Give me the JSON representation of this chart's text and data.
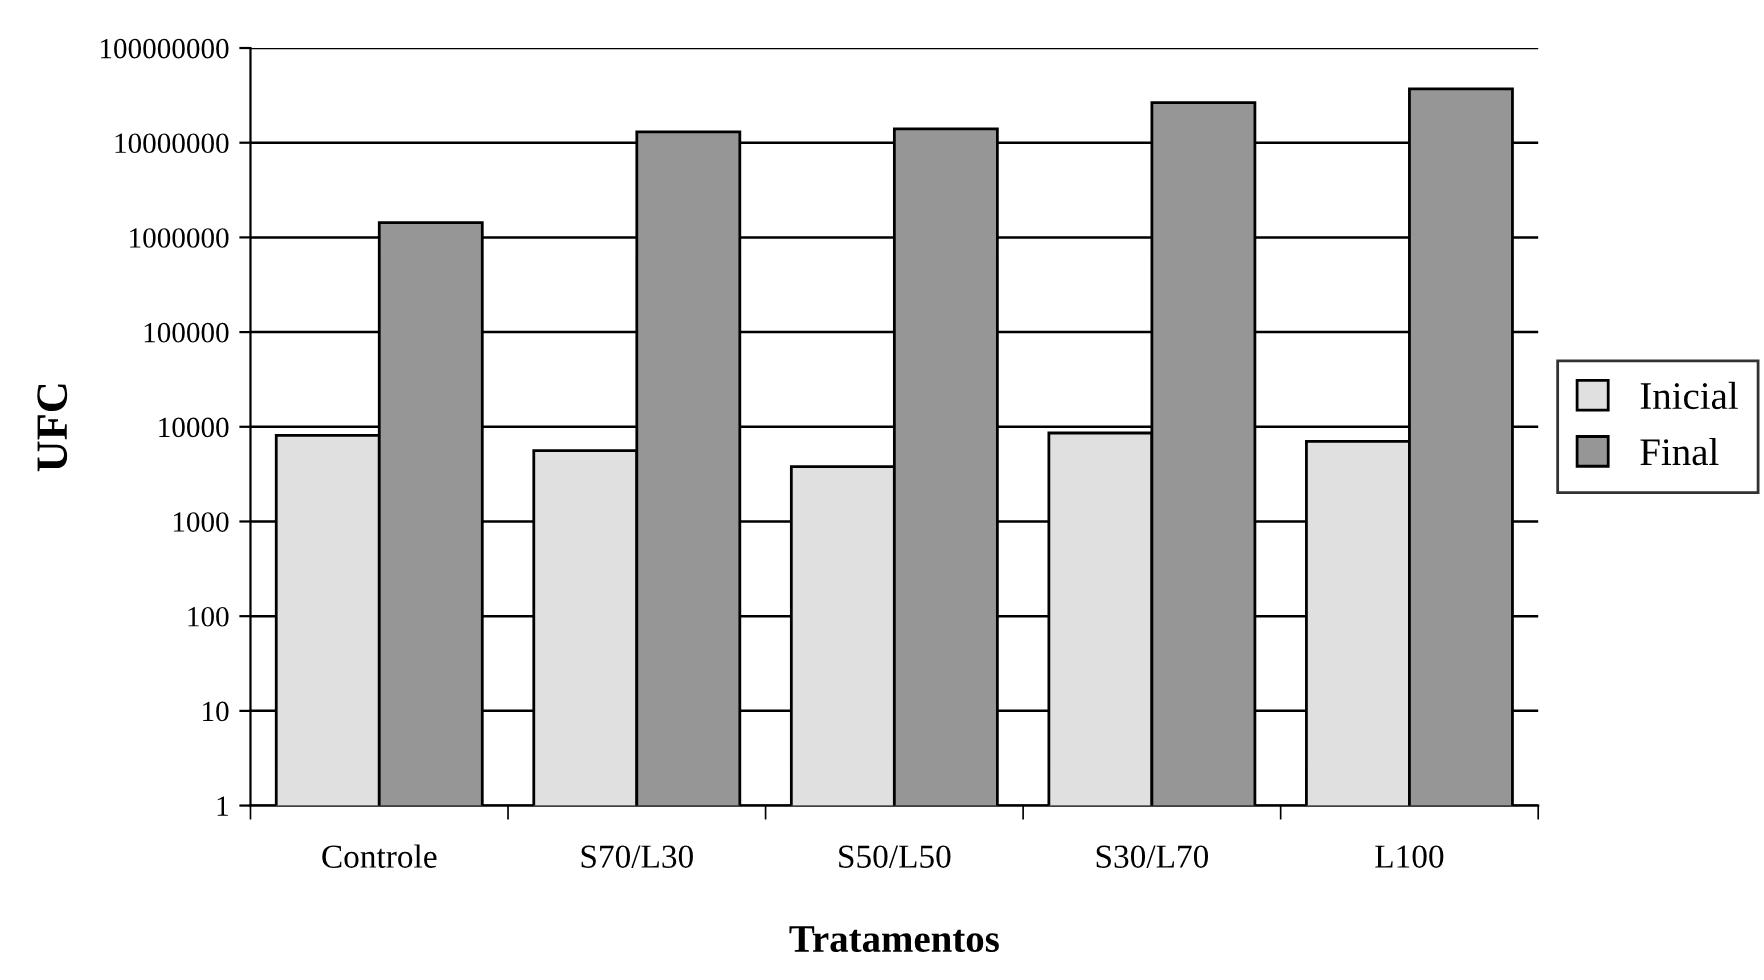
{
  "chart_data": {
    "type": "bar",
    "xlabel": "Tratamentos",
    "ylabel": "UFC",
    "categories": [
      "Controle",
      "S70/L30",
      "S50/L50",
      "S30/L70",
      "L100"
    ],
    "series": [
      {
        "name": "Inicial",
        "color": "#e0e0e0",
        "values": [
          8100,
          5600,
          3800,
          8600,
          7000
        ]
      },
      {
        "name": "Final",
        "color": "#969696",
        "values": [
          1430000,
          13000000,
          14000000,
          26500000,
          37000000
        ]
      }
    ],
    "log": true,
    "ylim": [
      1,
      100000000
    ],
    "yticks": [
      1,
      10,
      100,
      1000,
      10000,
      100000,
      1000000,
      10000000,
      100000000
    ],
    "grid": "y",
    "legend": "right"
  }
}
